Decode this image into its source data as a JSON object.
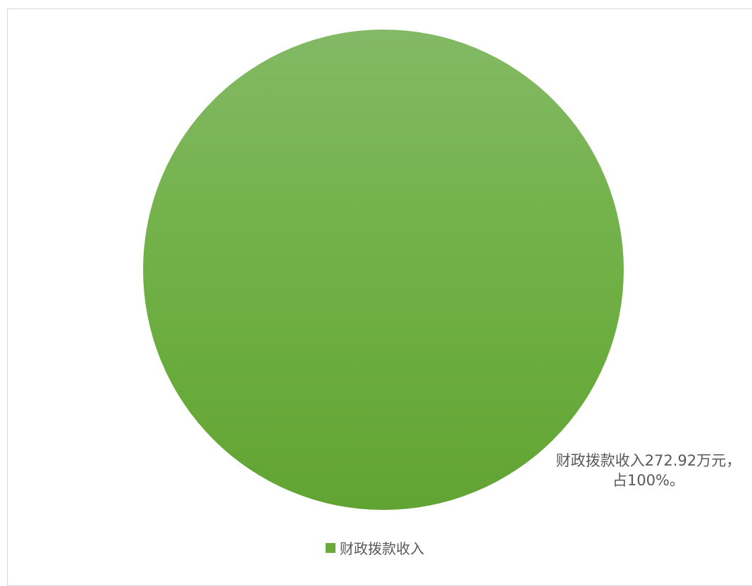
{
  "chart_data": {
    "type": "pie",
    "title": "",
    "slices": [
      {
        "label": "财政拨款收入",
        "value": 272.92,
        "percent": 100,
        "color": "#6aaa3a"
      }
    ],
    "data_label": {
      "line1": "财政拨款收入272.92万元，",
      "line2": "占100%。"
    },
    "legend": {
      "position": "bottom",
      "items": [
        {
          "label": "财政拨款收入",
          "color": "#6aaa3a"
        }
      ]
    }
  }
}
